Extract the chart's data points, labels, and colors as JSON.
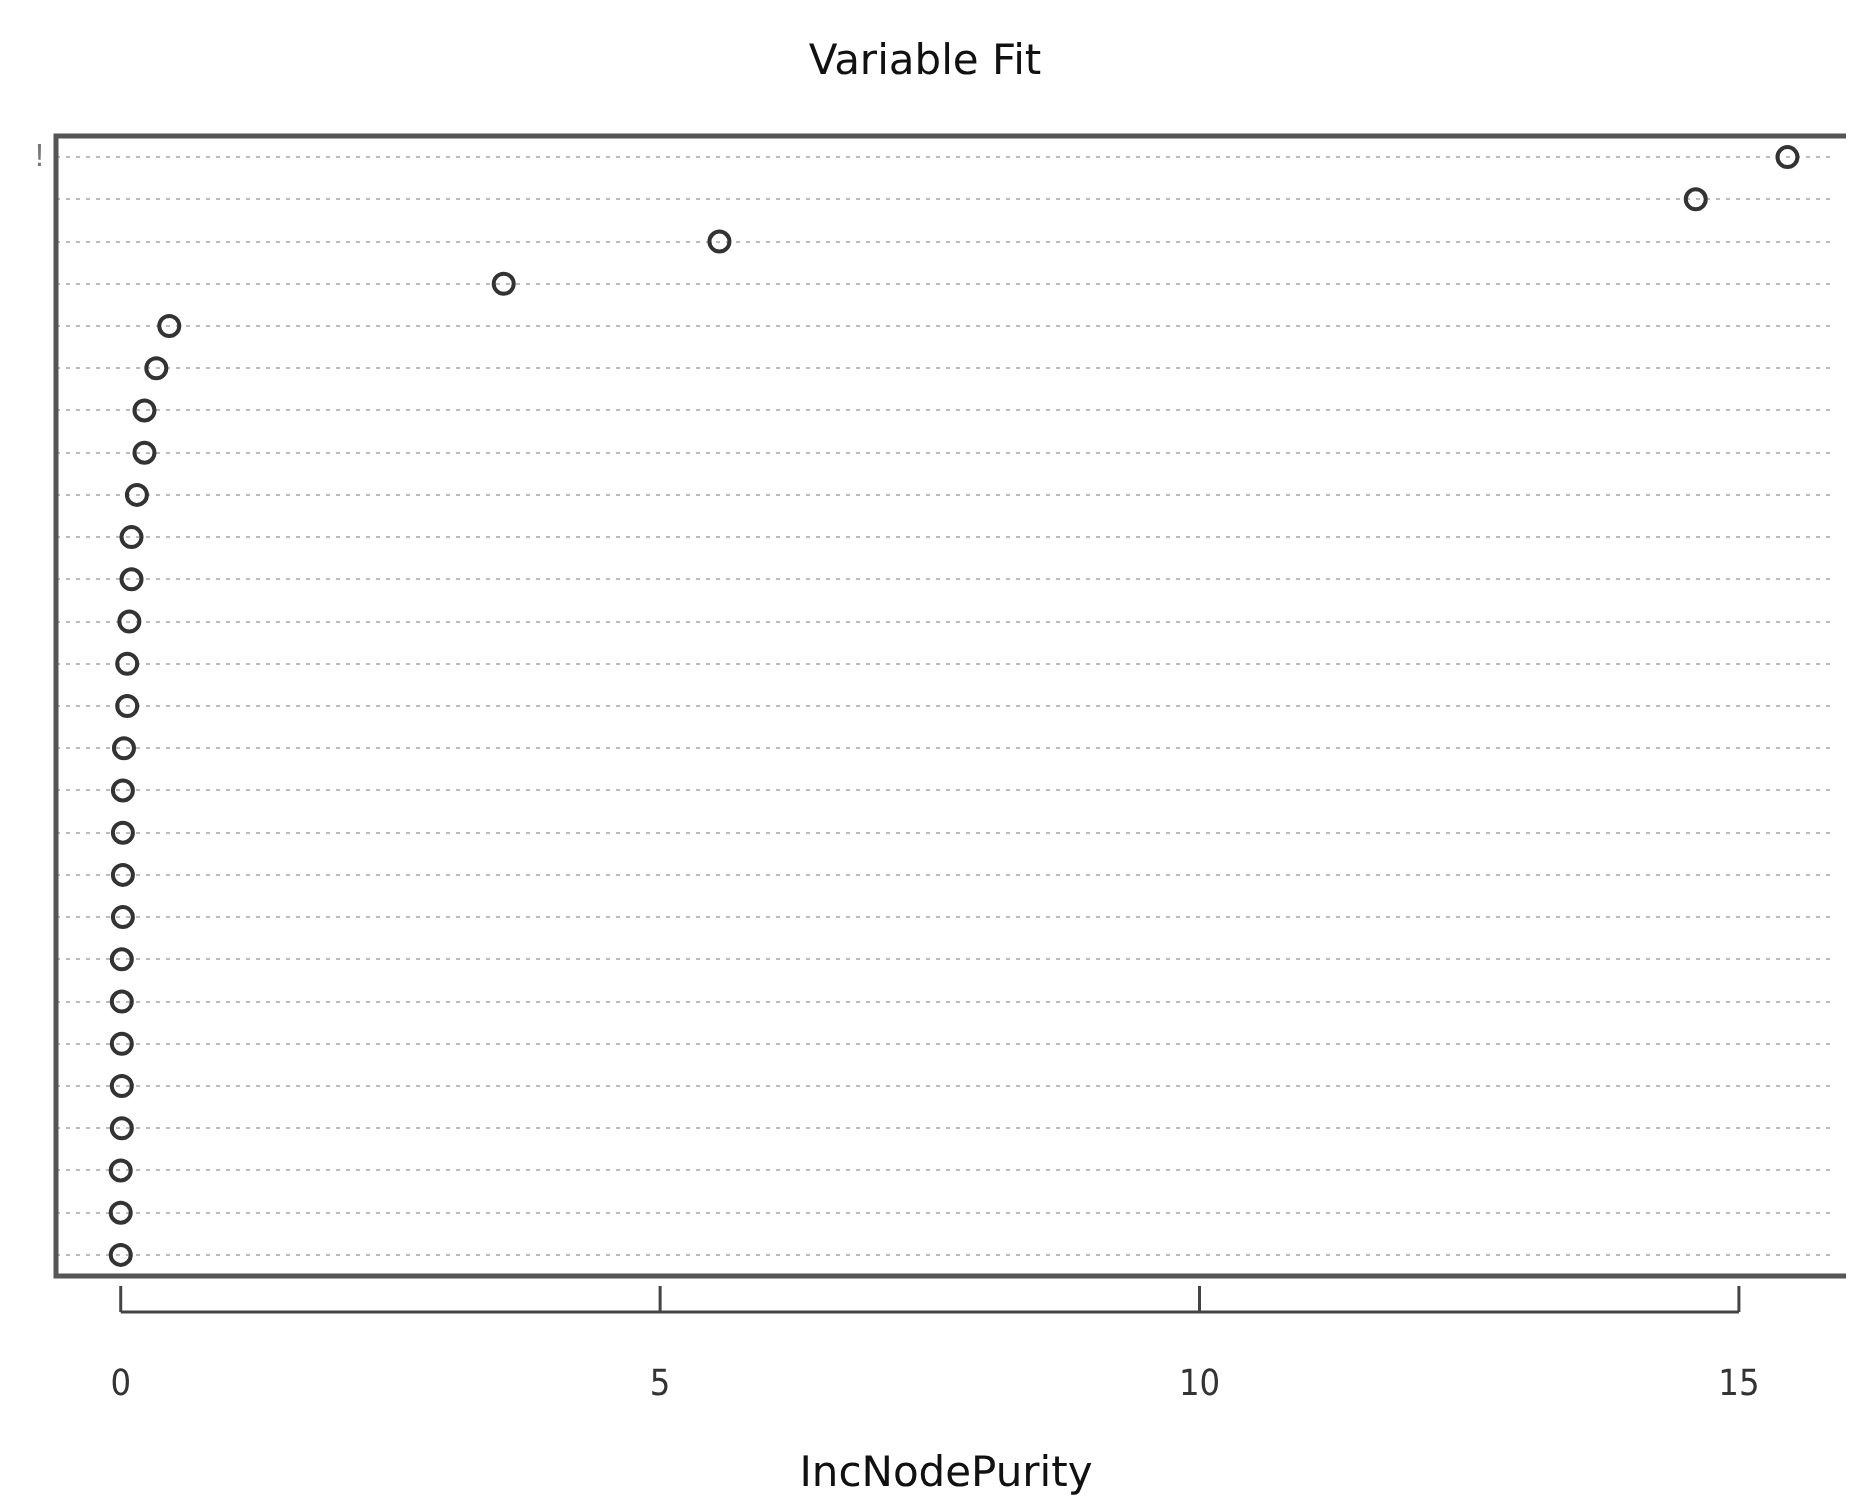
{
  "chart_data": {
    "type": "scatter",
    "title": "Variable Fit",
    "xlabel": "IncNodePurity",
    "orientation": "horizontal",
    "categories": [
      "!",
      null,
      null,
      null,
      null,
      null,
      null,
      null,
      null,
      null,
      null,
      null,
      null,
      null,
      null,
      null,
      null,
      null,
      null,
      null,
      null,
      null,
      null,
      null,
      null,
      null,
      null
    ],
    "values": [
      15.45,
      14.6,
      5.55,
      3.55,
      0.45,
      0.33,
      0.22,
      0.22,
      0.15,
      0.1,
      0.1,
      0.08,
      0.06,
      0.06,
      0.03,
      0.02,
      0.02,
      0.02,
      0.02,
      0.01,
      0.01,
      0.01,
      0.01,
      0.01,
      0.0,
      0.0,
      0.0
    ],
    "color": "#333333",
    "marker": "circle",
    "grid": "y",
    "xlim": [
      -0.6,
      15.9
    ],
    "xticks": [
      0,
      5,
      10,
      15
    ]
  }
}
